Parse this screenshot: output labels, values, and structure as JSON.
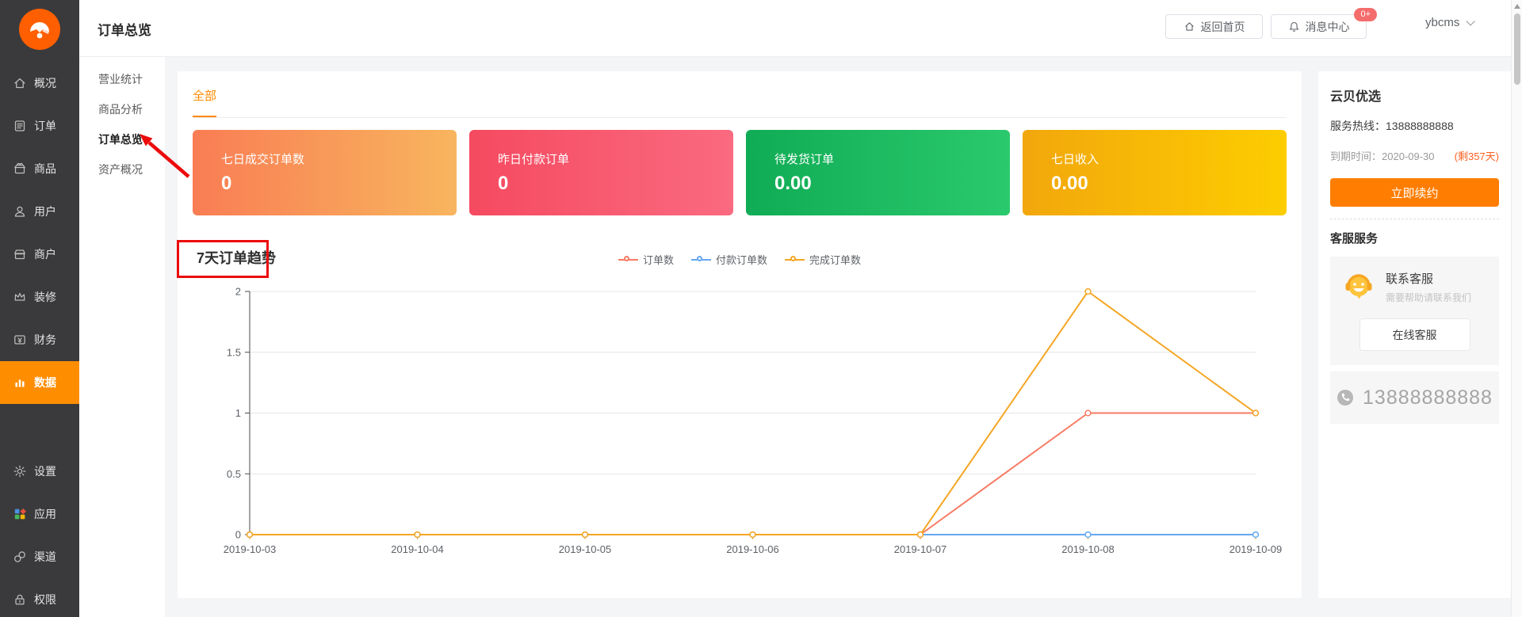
{
  "colors": {
    "accent_orange": "#ff8d00",
    "logo_orange": "#ff5f00",
    "annotation_red": "#ec0b0b",
    "axis_x": "#f5a623",
    "grid": "#e6e6e6"
  },
  "sidebar": {
    "items": [
      {
        "label": "概况",
        "icon": "home-icon",
        "active": false
      },
      {
        "label": "订单",
        "icon": "order-doc-icon",
        "active": false
      },
      {
        "label": "商品",
        "icon": "goods-gift-icon",
        "active": false
      },
      {
        "label": "用户",
        "icon": "user-icon",
        "active": false
      },
      {
        "label": "商户",
        "icon": "merchant-shop-icon",
        "active": false
      },
      {
        "label": "装修",
        "icon": "decorate-crown-icon",
        "active": false
      },
      {
        "label": "财务",
        "icon": "finance-wallet-icon",
        "active": false
      },
      {
        "label": "数据",
        "icon": "data-chart-icon",
        "active": true
      },
      {
        "label": "设置",
        "icon": "gear-icon",
        "active": false,
        "gap": true
      },
      {
        "label": "应用",
        "icon": "apps-icon",
        "active": false
      },
      {
        "label": "渠道",
        "icon": "channel-link-icon",
        "active": false
      },
      {
        "label": "权限",
        "icon": "lock-icon",
        "active": false
      }
    ]
  },
  "subnav": {
    "items": [
      "营业统计",
      "商品分析",
      "订单总览",
      "资产概况"
    ],
    "active": "订单总览"
  },
  "header": {
    "title": "订单总览",
    "home_button": "返回首页",
    "message_button": "消息中心",
    "message_badge": "0+",
    "username": "ybcms"
  },
  "tabs": {
    "all_label": "全部"
  },
  "stat_cards": [
    {
      "label": "七日成交订单数",
      "value": "0",
      "gradient": [
        "#f97d54",
        "#f8b55e"
      ]
    },
    {
      "label": "昨日付款订单",
      "value": "0",
      "gradient": [
        "#f54a60",
        "#fa6a80"
      ]
    },
    {
      "label": "待发货订单",
      "value": "0.00",
      "gradient": [
        "#10ac55",
        "#2bc96d"
      ]
    },
    {
      "label": "七日收入",
      "value": "0.00",
      "gradient": [
        "#f2a70c",
        "#fdcd00"
      ]
    }
  ],
  "chart_data": {
    "type": "line",
    "title": "7天订单趋势",
    "x": [
      "2019-10-03",
      "2019-10-04",
      "2019-10-05",
      "2019-10-06",
      "2019-10-07",
      "2019-10-08",
      "2019-10-09"
    ],
    "series": [
      {
        "name": "付款订单数",
        "color": "#64a8f0",
        "values": [
          0,
          0,
          0,
          0,
          0,
          0,
          0
        ]
      },
      {
        "name": "订单数",
        "color": "#f77b64",
        "values": [
          0,
          0,
          0,
          0,
          0,
          1,
          1
        ]
      },
      {
        "name": "完成订单数",
        "color": "#f5a623",
        "values": [
          0,
          0,
          0,
          0,
          0,
          2,
          1
        ]
      }
    ],
    "legend_order": [
      "订单数",
      "付款订单数",
      "完成订单数"
    ],
    "ylim": [
      0,
      2
    ],
    "yticks": [
      0,
      0.5,
      1,
      1.5,
      2
    ],
    "grid": true,
    "legend_position": "top-center"
  },
  "right_panel": {
    "shop_name": "云贝优选",
    "hotline_label": "服务热线：",
    "hotline_number": "13888888888",
    "expire_label": "到期时间：",
    "expire_date": "2020-09-30",
    "days_left": "(剩357天)",
    "renew_button": "立即续约",
    "service_title": "客服服务",
    "contact_title": "联系客服",
    "contact_subtitle": "需要帮助请联系我们",
    "online_button": "在线客服",
    "phone_number": "13888888888",
    "smiley_icon": "customer-service-smiley-icon",
    "phone_icon": "phone-icon"
  }
}
